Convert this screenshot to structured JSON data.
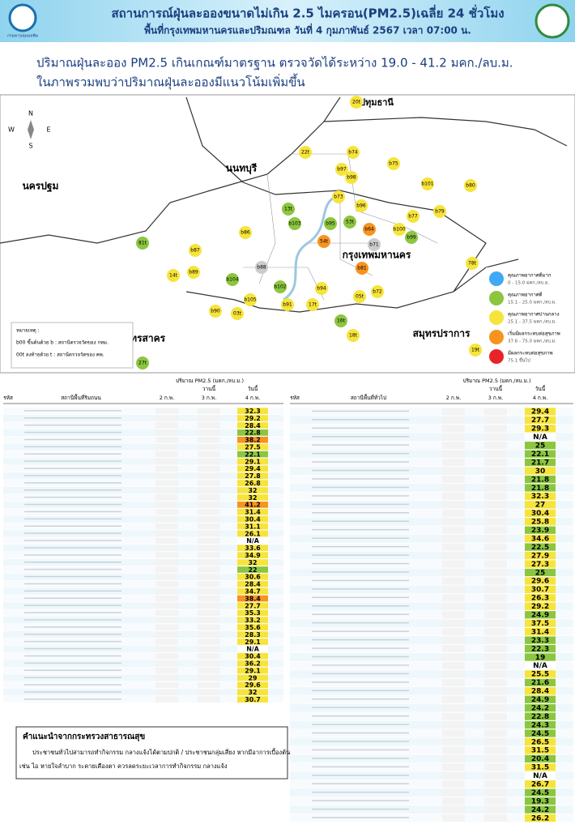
{
  "header": {
    "agency": "กรมควบคุมมลพิษ",
    "title": "สถานการณ์ฝุ่นละอองขนาดไม่เกิน 2.5 ไมครอน(PM2.5)เฉลี่ย 24 ชั่วโมง",
    "subtitle": "พื้นที่กรุงเทพมหานครและปริมณฑล วันที่ 4 กุมภาพันธ์ 2567 เวลา 07:00 น."
  },
  "summary": [
    "ปริมาณฝุ่นละออง PM2.5 เกินเกณฑ์มาตรฐาน ตรวจวัดได้ระหว่าง 19.0 - 41.2 มคก./ลบ.ม.",
    "ในภาพรวมพบว่าปริมาณฝุ่นละอองมีแนวโน้มเพิ่มขึ้น"
  ],
  "map": {
    "compass": [
      "N",
      "W",
      "E",
      "S"
    ],
    "regions": [
      "ปทุมธานี",
      "นนทบุรี",
      "นครปฐม",
      "กรุงเทพมหานคร",
      "สมุทรสาคร",
      "สมุทรปราการ"
    ],
    "stations": [
      {
        "label": "20t",
        "color": "#f7e43b"
      },
      {
        "label": "22t",
        "color": "#f7e43b"
      },
      {
        "label": "b74",
        "color": "#f7e43b"
      },
      {
        "label": "b75",
        "color": "#f7e43b"
      },
      {
        "label": "b97",
        "color": "#f7e43b"
      },
      {
        "label": "b98",
        "color": "#f7e43b"
      },
      {
        "label": "b101",
        "color": "#f7e43b"
      },
      {
        "label": "b73",
        "color": "#f7e43b"
      },
      {
        "label": "b96",
        "color": "#f7e43b"
      },
      {
        "label": "b80",
        "color": "#f7e43b"
      },
      {
        "label": "b79",
        "color": "#f7e43b"
      },
      {
        "label": "b77",
        "color": "#f7e43b"
      },
      {
        "label": "13t",
        "color": "#8cc63f"
      },
      {
        "label": "b86",
        "color": "#f7e43b"
      },
      {
        "label": "b103",
        "color": "#8cc63f"
      },
      {
        "label": "b95",
        "color": "#8cc63f"
      },
      {
        "label": "53t",
        "color": "#8cc63f"
      },
      {
        "label": "b100",
        "color": "#f7e43b"
      },
      {
        "label": "b99",
        "color": "#8cc63f"
      },
      {
        "label": "81t",
        "color": "#8cc63f"
      },
      {
        "label": "b87",
        "color": "#f7e43b"
      },
      {
        "label": "14t",
        "color": "#f7e43b"
      },
      {
        "label": "b89",
        "color": "#f7e43b"
      },
      {
        "label": "b104",
        "color": "#8cc63f"
      },
      {
        "label": "54t",
        "color": "#f7931e"
      },
      {
        "label": "b64",
        "color": "#f7931e"
      },
      {
        "label": "b81",
        "color": "#f7931e"
      },
      {
        "label": "78t",
        "color": "#f7e43b"
      },
      {
        "label": "b72",
        "color": "#f7e43b"
      },
      {
        "label": "05t",
        "color": "#f7e43b"
      },
      {
        "label": "b94",
        "color": "#f7e43b"
      },
      {
        "label": "17t",
        "color": "#f7e43b"
      },
      {
        "label": "b91",
        "color": "#f7e43b"
      },
      {
        "label": "03t",
        "color": "#f7e43b"
      },
      {
        "label": "b90",
        "color": "#f7e43b"
      },
      {
        "label": "18t",
        "color": "#f7e43b"
      },
      {
        "label": "16t",
        "color": "#8cc63f"
      },
      {
        "label": "19t",
        "color": "#f7e43b"
      },
      {
        "label": "27t",
        "color": "#8cc63f"
      },
      {
        "label": "b105",
        "color": "#f7e43b"
      },
      {
        "label": "b102",
        "color": "#8cc63f"
      },
      {
        "label": "b88",
        "color": "#cccccc"
      },
      {
        "label": "b71",
        "color": "#cccccc"
      }
    ],
    "notes": [
      "หมายเหตุ :",
      "b00 ขึ้นต้นด้วย b : สถานีตรวจวัดของ กทม.",
      "00t ลงท้ายด้วย t : สถานีตรวจวัดของ คพ."
    ]
  },
  "legend": [
    {
      "name": "คุณภาพอากาศดีมาก",
      "label": "0 - 15.0 มคก./ลบ.ม.",
      "color": "#3fa9f5"
    },
    {
      "name": "คุณภาพอากาศดี",
      "label": "15.1 - 25.0 มคก./ลบ.ม.",
      "color": "#8cc63f"
    },
    {
      "name": "คุณภาพอากาศปานกลาง",
      "label": "25.1 - 37.5 มคก./ลบ.ม.",
      "color": "#f7e43b"
    },
    {
      "name": "เริ่มมีผลกระทบต่อสุขภาพ",
      "label": "37.6 - 75.0 มคก./ลบ.ม.",
      "color": "#f7931e"
    },
    {
      "name": "มีผลกระทบต่อสุขภาพ",
      "label": "75.1 ขึ้นไป",
      "color": "#e8242b"
    }
  ],
  "tables": [
    {
      "code_header": "รหัส",
      "name_header": "สถานีพื้นที่ริมถนน",
      "unit": "ปริมาณ PM2.5 (มคก./ลบ.ม.)",
      "days": [
        "2 ก.พ.",
        "3 ก.พ.",
        "4 ก.พ."
      ],
      "day_notes": [
        "วานนี้",
        "วันนี้"
      ],
      "today": [
        32.3,
        29.2,
        28.4,
        22.8,
        38.2,
        27.5,
        22.1,
        29.1,
        29.4,
        27.8,
        26.8,
        32.0,
        32.0,
        41.2,
        31.4,
        30.4,
        31.1,
        26.1,
        "N/A",
        33.6,
        34.9,
        32.0,
        22.0,
        30.6,
        28.4,
        34.7,
        38.4,
        27.7,
        35.3,
        33.2,
        35.6,
        28.3,
        29.1,
        "N/A",
        30.4,
        36.2,
        29.1,
        29.0,
        29.6,
        32.0,
        30.7
      ]
    },
    {
      "code_header": "รหัส",
      "name_header": "สถานีพื้นที่ทั่วไป",
      "unit": "ปริมาณ PM2.5 (มคก./ลบ.ม.)",
      "days": [
        "2 ก.พ.",
        "3 ก.พ.",
        "4 ก.พ."
      ],
      "day_notes": [
        "วานนี้",
        "วันนี้"
      ],
      "today": [
        29.4,
        27.7,
        29.3,
        "N/A",
        25.0,
        22.1,
        21.7,
        30.0,
        21.8,
        21.8,
        32.3,
        27.0,
        30.4,
        25.8,
        23.9,
        34.6,
        22.5,
        27.9,
        27.3,
        25.0,
        29.6,
        30.7,
        26.3,
        29.2,
        24.9,
        37.5,
        31.4,
        23.3,
        22.3,
        19.0,
        "N/A",
        25.5,
        21.6,
        28.4,
        24.9,
        24.2,
        22.8,
        24.3,
        24.5,
        26.5,
        31.5,
        20.4,
        31.5,
        "N/A",
        26.7,
        24.5,
        19.3,
        24.2,
        26.2
      ]
    }
  ],
  "advice": {
    "title": "คำแนะนำจากกระทรวงสาธารณสุข",
    "lines": [
      "ประชาชนทั่วไปสามารถทำกิจกรรม กลางแจ้งได้ตามปกติ / ประชาชนกลุ่มเสี่ยง หากมีอาการเบื้องต้น",
      "เช่น ไอ หายใจลำบาก ระคายเคืองตา ควรลดระยะเวลาการทำกิจกรรม กลางแจ้ง"
    ]
  }
}
